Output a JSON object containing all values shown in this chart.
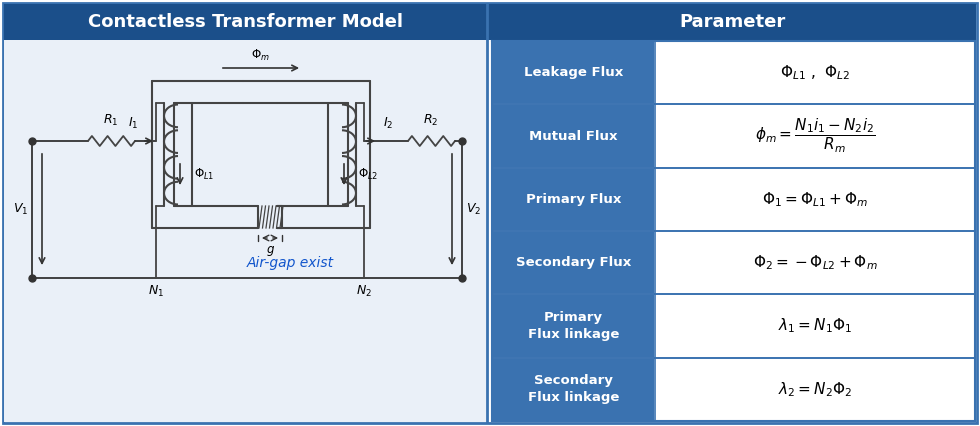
{
  "title_left": "Contactless Transformer Model",
  "title_right": "Parameter",
  "header_bg": "#1B4F8A",
  "header_text_color": "#FFFFFF",
  "table_label_bg": "#3A72B0",
  "table_label_text": "#FFFFFF",
  "table_value_bg": "#FFFFFF",
  "table_value_text": "#000000",
  "outer_border": "#3A72B0",
  "left_panel_bg": "#EAF0F8",
  "rows": [
    {
      "label": "Leakage Flux",
      "formula": "$\\Phi_{L1}$ ,  $\\Phi_{L2}$"
    },
    {
      "label": "Mutual Flux",
      "formula": "$\\phi_m = \\dfrac{N_1 i_1 - N_2 i_2}{R_m}$"
    },
    {
      "label": "Primary Flux",
      "formula": "$\\Phi_1 = \\Phi_{L1} + \\Phi_m$"
    },
    {
      "label": "Secondary Flux",
      "formula": "$\\Phi_2 = -\\Phi_{L2} + \\Phi_m$"
    },
    {
      "label": "Primary\nFlux linkage",
      "formula": "$\\lambda_1 = N_1 \\Phi_1$"
    },
    {
      "label": "Secondary\nFlux linkage",
      "formula": "$\\lambda_2 = N_2 \\Phi_2$"
    }
  ],
  "air_gap_label": "Air-gap exist",
  "air_gap_color": "#1155CC"
}
